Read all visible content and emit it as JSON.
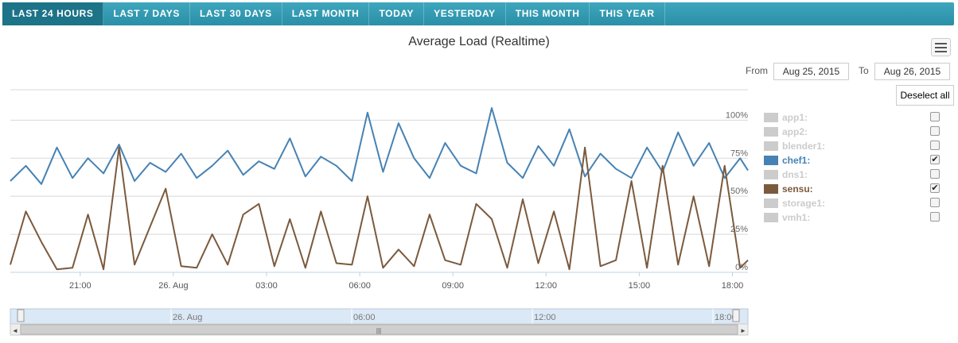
{
  "tabs": [
    {
      "label": "LAST 24 HOURS",
      "active": true
    },
    {
      "label": "LAST 7 DAYS",
      "active": false
    },
    {
      "label": "LAST 30 DAYS",
      "active": false
    },
    {
      "label": "LAST MONTH",
      "active": false
    },
    {
      "label": "TODAY",
      "active": false
    },
    {
      "label": "YESTERDAY",
      "active": false
    },
    {
      "label": "THIS MONTH",
      "active": false
    },
    {
      "label": "THIS YEAR",
      "active": false
    }
  ],
  "range": {
    "from_label": "From",
    "from_value": "Aug 25, 2015",
    "to_label": "To",
    "to_value": "Aug 26, 2015",
    "deselect_label": "Deselect all"
  },
  "legend": [
    {
      "label": "app1:",
      "color": "#cccccc",
      "active": false
    },
    {
      "label": "app2:",
      "color": "#cccccc",
      "active": false
    },
    {
      "label": "blender1:",
      "color": "#cccccc",
      "active": false
    },
    {
      "label": "chef1:",
      "color": "#4682b4",
      "active": true
    },
    {
      "label": "dns1:",
      "color": "#cccccc",
      "active": false
    },
    {
      "label": "sensu:",
      "color": "#7b5a3d",
      "active": true
    },
    {
      "label": "storage1:",
      "color": "#cccccc",
      "active": false
    },
    {
      "label": "vmh1:",
      "color": "#cccccc",
      "active": false
    }
  ],
  "icons": {
    "menu": "hamburger-menu-icon",
    "check": "✔"
  },
  "chart_data": {
    "type": "line",
    "title": "Average Load (Realtime)",
    "x_range": [
      "2015-08-25 18:45",
      "2015-08-26 18:30"
    ],
    "x_ticks": [
      "21:00",
      "26. Aug",
      "03:00",
      "06:00",
      "09:00",
      "12:00",
      "15:00",
      "18:00"
    ],
    "y_ticks": [
      "0%",
      "25%",
      "50%",
      "75%",
      "100%"
    ],
    "ylim": [
      0,
      120
    ],
    "grid": true,
    "series": [
      {
        "name": "chef1",
        "color": "#4682b4",
        "x_hours": [
          0,
          0.5,
          1,
          1.5,
          2,
          2.5,
          3,
          3.5,
          4,
          4.5,
          5,
          5.5,
          6,
          6.5,
          7,
          7.5,
          8,
          8.5,
          9,
          9.5,
          10,
          10.5,
          11,
          11.5,
          12,
          12.5,
          13,
          13.5,
          14,
          14.5,
          15,
          15.5,
          16,
          16.5,
          17,
          17.5,
          18,
          18.5,
          19,
          19.5,
          20,
          20.5,
          21,
          21.5,
          22,
          22.5,
          23,
          23.5,
          23.75
        ],
        "values": [
          60,
          70,
          58,
          82,
          62,
          75,
          65,
          84,
          60,
          72,
          66,
          78,
          62,
          70,
          80,
          64,
          73,
          68,
          88,
          63,
          76,
          70,
          60,
          105,
          66,
          98,
          75,
          62,
          85,
          70,
          65,
          108,
          72,
          62,
          83,
          70,
          94,
          63,
          78,
          68,
          62,
          82,
          66,
          92,
          70,
          85,
          62,
          75,
          67
        ]
      },
      {
        "name": "sensu",
        "color": "#7b5a3d",
        "x_hours": [
          0,
          0.5,
          1,
          1.5,
          2,
          2.5,
          3,
          3.5,
          4,
          4.5,
          5,
          5.5,
          6,
          6.5,
          7,
          7.5,
          8,
          8.5,
          9,
          9.5,
          10,
          10.5,
          11,
          11.5,
          12,
          12.5,
          13,
          13.5,
          14,
          14.5,
          15,
          15.5,
          16,
          16.5,
          17,
          17.5,
          18,
          18.5,
          19,
          19.5,
          20,
          20.5,
          21,
          21.5,
          22,
          22.5,
          23,
          23.5,
          23.75
        ],
        "values": [
          5,
          40,
          20,
          2,
          3,
          38,
          2,
          82,
          5,
          30,
          55,
          4,
          3,
          25,
          5,
          38,
          45,
          4,
          35,
          3,
          40,
          6,
          5,
          50,
          3,
          15,
          4,
          38,
          8,
          5,
          45,
          35,
          3,
          48,
          6,
          40,
          2,
          82,
          4,
          8,
          60,
          3,
          70,
          5,
          50,
          4,
          70,
          3,
          8
        ]
      }
    ]
  },
  "navigator": {
    "x_ticks": [
      "26. Aug",
      "06:00",
      "12:00",
      "18:00"
    ],
    "scroll_left": "◄",
    "scroll_right": "►",
    "grip": "|||"
  }
}
